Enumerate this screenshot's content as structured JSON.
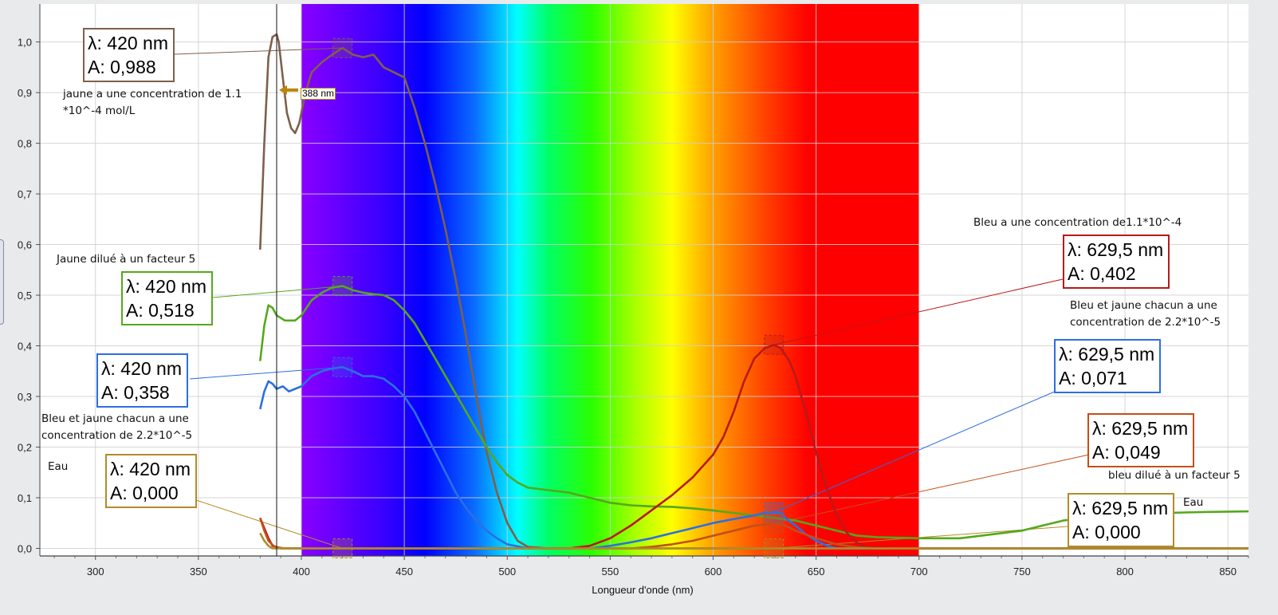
{
  "chart_data": {
    "type": "line",
    "title": "",
    "xlabel": "Longueur d'onde (nm)",
    "ylabel": "",
    "xlim": [
      273,
      860
    ],
    "ylim": [
      -0.015,
      1.075
    ],
    "grid": true,
    "x_ticks": [
      300,
      350,
      400,
      450,
      500,
      550,
      600,
      650,
      700,
      750,
      800,
      850
    ],
    "x_tick_labels": [
      "300",
      "350",
      "400",
      "450",
      "500",
      "550",
      "600",
      "650",
      "700",
      "750",
      "800",
      "850"
    ],
    "y_ticks": [
      0,
      0.1,
      0.2,
      0.3,
      0.4,
      0.5,
      0.6,
      0.7,
      0.8,
      0.9,
      1.0
    ],
    "y_tick_labels": [
      "0,0",
      "0,1",
      "0,2",
      "0,3",
      "0,4",
      "0,5",
      "0,6",
      "0,7",
      "0,8",
      "0,9",
      "1,0"
    ],
    "visible_spectrum_band": [
      400,
      700
    ],
    "cursor": {
      "x": 388,
      "label": "388 nm",
      "color": "#b8860b"
    },
    "series": [
      {
        "color": "#7f5f4b",
        "points": [
          [
            380,
            0.59
          ],
          [
            382,
            0.8
          ],
          [
            384,
            0.97
          ],
          [
            386,
            1.01
          ],
          [
            388,
            1.015
          ],
          [
            389,
            1.0
          ],
          [
            391,
            0.93
          ],
          [
            393,
            0.86
          ],
          [
            395,
            0.83
          ],
          [
            397,
            0.82
          ],
          [
            399,
            0.84
          ],
          [
            402,
            0.9
          ],
          [
            405,
            0.94
          ],
          [
            410,
            0.96
          ],
          [
            415,
            0.975
          ],
          [
            420,
            0.988
          ],
          [
            425,
            0.975
          ],
          [
            430,
            0.97
          ],
          [
            435,
            0.975
          ],
          [
            440,
            0.95
          ],
          [
            445,
            0.94
          ],
          [
            450,
            0.93
          ],
          [
            455,
            0.87
          ],
          [
            460,
            0.8
          ],
          [
            465,
            0.72
          ],
          [
            470,
            0.63
          ],
          [
            475,
            0.53
          ],
          [
            480,
            0.42
          ],
          [
            485,
            0.3
          ],
          [
            490,
            0.19
          ],
          [
            495,
            0.11
          ],
          [
            500,
            0.05
          ],
          [
            505,
            0.015
          ],
          [
            510,
            0.003
          ],
          [
            520,
            0.0
          ],
          [
            860,
            0.0
          ]
        ]
      },
      {
        "color": "#55a81c",
        "points": [
          [
            380,
            0.37
          ],
          [
            382,
            0.44
          ],
          [
            384,
            0.48
          ],
          [
            386,
            0.475
          ],
          [
            388,
            0.46
          ],
          [
            392,
            0.45
          ],
          [
            397,
            0.45
          ],
          [
            400,
            0.46
          ],
          [
            405,
            0.49
          ],
          [
            410,
            0.505
          ],
          [
            415,
            0.515
          ],
          [
            420,
            0.518
          ],
          [
            425,
            0.51
          ],
          [
            430,
            0.505
          ],
          [
            435,
            0.502
          ],
          [
            440,
            0.5
          ],
          [
            445,
            0.49
          ],
          [
            450,
            0.47
          ],
          [
            455,
            0.445
          ],
          [
            460,
            0.41
          ],
          [
            465,
            0.375
          ],
          [
            470,
            0.34
          ],
          [
            475,
            0.305
          ],
          [
            480,
            0.27
          ],
          [
            485,
            0.235
          ],
          [
            490,
            0.2
          ],
          [
            495,
            0.17
          ],
          [
            500,
            0.145
          ],
          [
            505,
            0.13
          ],
          [
            510,
            0.12
          ],
          [
            520,
            0.115
          ],
          [
            530,
            0.11
          ],
          [
            540,
            0.1
          ],
          [
            550,
            0.09
          ],
          [
            560,
            0.085
          ],
          [
            570,
            0.083
          ],
          [
            580,
            0.082
          ],
          [
            590,
            0.079
          ],
          [
            600,
            0.075
          ],
          [
            610,
            0.07
          ],
          [
            620,
            0.065
          ],
          [
            630,
            0.06
          ],
          [
            640,
            0.055
          ],
          [
            650,
            0.045
          ],
          [
            660,
            0.035
          ],
          [
            670,
            0.025
          ],
          [
            680,
            0.022
          ],
          [
            700,
            0.02
          ],
          [
            720,
            0.02
          ],
          [
            740,
            0.03
          ],
          [
            750,
            0.035
          ],
          [
            760,
            0.045
          ],
          [
            770,
            0.055
          ],
          [
            780,
            0.06
          ],
          [
            790,
            0.062
          ],
          [
            800,
            0.065
          ],
          [
            820,
            0.07
          ],
          [
            840,
            0.072
          ],
          [
            860,
            0.073
          ]
        ]
      },
      {
        "color": "#2d6fe0",
        "points": [
          [
            380,
            0.275
          ],
          [
            382,
            0.31
          ],
          [
            384,
            0.33
          ],
          [
            386,
            0.325
          ],
          [
            388,
            0.315
          ],
          [
            391,
            0.32
          ],
          [
            394,
            0.31
          ],
          [
            397,
            0.315
          ],
          [
            400,
            0.32
          ],
          [
            405,
            0.34
          ],
          [
            410,
            0.35
          ],
          [
            415,
            0.355
          ],
          [
            420,
            0.358
          ],
          [
            425,
            0.35
          ],
          [
            430,
            0.34
          ],
          [
            435,
            0.34
          ],
          [
            440,
            0.335
          ],
          [
            445,
            0.32
          ],
          [
            450,
            0.3
          ],
          [
            455,
            0.27
          ],
          [
            460,
            0.23
          ],
          [
            465,
            0.19
          ],
          [
            470,
            0.15
          ],
          [
            475,
            0.11
          ],
          [
            480,
            0.08
          ],
          [
            485,
            0.055
          ],
          [
            490,
            0.035
          ],
          [
            495,
            0.02
          ],
          [
            500,
            0.008
          ],
          [
            510,
            0.0
          ],
          [
            540,
            0.0
          ],
          [
            550,
            0.005
          ],
          [
            560,
            0.012
          ],
          [
            570,
            0.02
          ],
          [
            580,
            0.03
          ],
          [
            590,
            0.04
          ],
          [
            600,
            0.05
          ],
          [
            610,
            0.058
          ],
          [
            620,
            0.065
          ],
          [
            625,
            0.07
          ],
          [
            630,
            0.071
          ],
          [
            633,
            0.07
          ],
          [
            635,
            0.06
          ],
          [
            640,
            0.045
          ],
          [
            645,
            0.028
          ],
          [
            650,
            0.015
          ],
          [
            655,
            0.006
          ],
          [
            660,
            0.0
          ],
          [
            860,
            0.0
          ]
        ]
      },
      {
        "color": "#b8191b",
        "points": [
          [
            380,
            0.06
          ],
          [
            382,
            0.04
          ],
          [
            384,
            0.02
          ],
          [
            386,
            0.005
          ],
          [
            390,
            0.0
          ],
          [
            530,
            0.0
          ],
          [
            540,
            0.005
          ],
          [
            550,
            0.02
          ],
          [
            560,
            0.045
          ],
          [
            570,
            0.075
          ],
          [
            580,
            0.105
          ],
          [
            590,
            0.14
          ],
          [
            600,
            0.185
          ],
          [
            605,
            0.22
          ],
          [
            610,
            0.27
          ],
          [
            615,
            0.33
          ],
          [
            620,
            0.375
          ],
          [
            625,
            0.395
          ],
          [
            629.5,
            0.402
          ],
          [
            633,
            0.395
          ],
          [
            637,
            0.37
          ],
          [
            640,
            0.34
          ],
          [
            645,
            0.27
          ],
          [
            650,
            0.19
          ],
          [
            655,
            0.12
          ],
          [
            660,
            0.065
          ],
          [
            665,
            0.03
          ],
          [
            670,
            0.01
          ],
          [
            675,
            0.002
          ],
          [
            690,
            0.0
          ],
          [
            860,
            0.0
          ]
        ]
      },
      {
        "color": "#c1501a",
        "points": [
          [
            380,
            0.06
          ],
          [
            382,
            0.035
          ],
          [
            384,
            0.015
          ],
          [
            387,
            0.003
          ],
          [
            392,
            0.0
          ],
          [
            560,
            0.0
          ],
          [
            570,
            0.003
          ],
          [
            580,
            0.008
          ],
          [
            590,
            0.015
          ],
          [
            600,
            0.025
          ],
          [
            610,
            0.035
          ],
          [
            620,
            0.045
          ],
          [
            629.5,
            0.049
          ],
          [
            635,
            0.045
          ],
          [
            640,
            0.035
          ],
          [
            650,
            0.02
          ],
          [
            660,
            0.008
          ],
          [
            670,
            0.002
          ],
          [
            680,
            0.0
          ],
          [
            860,
            0.0
          ]
        ]
      },
      {
        "color": "#b08d2a",
        "points": [
          [
            380,
            0.03
          ],
          [
            382,
            0.015
          ],
          [
            384,
            0.005
          ],
          [
            386,
            0.0
          ],
          [
            860,
            0.0
          ]
        ]
      }
    ],
    "markers": [
      {
        "x": 420,
        "y": 0.988,
        "color": "#7f5f4b"
      },
      {
        "x": 420,
        "y": 0.518,
        "color": "#55a81c"
      },
      {
        "x": 420,
        "y": 0.358,
        "color": "#2d6fe0"
      },
      {
        "x": 420,
        "y": 0.0,
        "color": "#b08d2a"
      },
      {
        "x": 629.5,
        "y": 0.402,
        "color": "#b8191b"
      },
      {
        "x": 629.5,
        "y": 0.071,
        "color": "#2d6fe0"
      },
      {
        "x": 629.5,
        "y": 0.049,
        "color": "#c1501a"
      },
      {
        "x": 629.5,
        "y": 0.0,
        "color": "#b08d2a"
      }
    ]
  },
  "annotations": [
    {
      "line1": "λ: 420 nm",
      "line2": "A: 0,988",
      "border": "#7f5f4b"
    },
    {
      "line1": "λ: 420 nm",
      "line2": "A: 0,518",
      "border": "#55a81c"
    },
    {
      "line1": "λ: 420 nm",
      "line2": "A: 0,358",
      "border": "#2d6fe0"
    },
    {
      "line1": "λ: 420 nm",
      "line2": "A: 0,000",
      "border": "#b08d2a"
    },
    {
      "line1": "λ: 629,5 nm",
      "line2": "A: 0,402",
      "border": "#b8191b"
    },
    {
      "line1": "λ: 629,5 nm",
      "line2": "A: 0,071",
      "border": "#2d6fe0"
    },
    {
      "line1": "λ: 629,5 nm",
      "line2": "A: 0,049",
      "border": "#c1501a"
    },
    {
      "line1": "λ: 629,5 nm",
      "line2": "A: 0,000",
      "border": "#b08d2a"
    }
  ],
  "notes": [
    "jaune a une concentration de 1.1\n*10^-4 mol/L",
    "Jaune dilué à un facteur 5",
    "Bleu et jaune chacun a une\nconcentration de 2.2*10^-5",
    "Eau",
    "Bleu a une concentration de1.1*10^-4",
    "Bleu et jaune chacun a une\nconcentration de 2.2*10^-5",
    "bleu dilué à un facteur 5",
    "Eau"
  ]
}
